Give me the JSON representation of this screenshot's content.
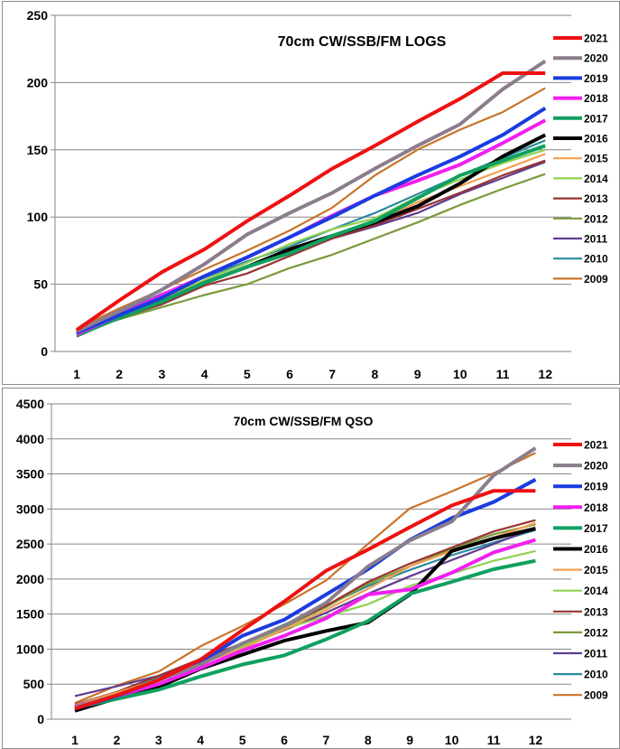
{
  "chart_data": [
    {
      "type": "line",
      "title": "70cm CW/SSB/FM LOGS",
      "xlabel": "",
      "ylabel": "",
      "x": [
        1,
        2,
        3,
        4,
        5,
        6,
        7,
        8,
        9,
        10,
        11,
        12
      ],
      "ylim": [
        0,
        250
      ],
      "yticks": [
        0,
        50,
        100,
        150,
        200,
        250
      ],
      "grid": "horizontal",
      "legend": "right",
      "series": [
        {
          "name": "2021",
          "color": "#ee1111",
          "values": [
            16,
            38,
            59,
            76,
            97,
            116,
            136,
            153,
            171,
            188,
            207,
            207
          ]
        },
        {
          "name": "2020",
          "color": "#8c7c8c",
          "values": [
            15,
            30,
            46,
            65,
            87,
            103,
            118,
            136,
            153,
            169,
            195,
            216
          ]
        },
        {
          "name": "2019",
          "color": "#1a3ce0",
          "values": [
            14,
            27,
            40,
            56,
            70,
            85,
            100,
            116,
            131,
            145,
            161,
            181
          ]
        },
        {
          "name": "2018",
          "color": "#f020f0",
          "values": [
            13,
            27,
            42,
            56,
            70,
            85,
            101,
            116,
            127,
            139,
            155,
            172
          ]
        },
        {
          "name": "2017",
          "color": "#10a060",
          "values": [
            12,
            25,
            37,
            51,
            63,
            73,
            86,
            97,
            114,
            131,
            142,
            153
          ]
        },
        {
          "name": "2016",
          "color": "#000000",
          "values": [
            13,
            25,
            37,
            51,
            63,
            76,
            86,
            96,
            108,
            125,
            145,
            161
          ]
        },
        {
          "name": "2015",
          "color": "#f0a050",
          "values": [
            14,
            27,
            38,
            51,
            62,
            77,
            86,
            96,
            111,
            123,
            135,
            147
          ]
        },
        {
          "name": "2014",
          "color": "#90d050",
          "values": [
            14,
            27,
            39,
            53,
            66,
            80,
            91,
            99,
            115,
            128,
            140,
            150
          ]
        },
        {
          "name": "2013",
          "color": "#993333",
          "values": [
            11,
            25,
            35,
            49,
            58,
            71,
            84,
            94,
            106,
            118,
            131,
            142
          ]
        },
        {
          "name": "2012",
          "color": "#7a9a3a",
          "values": [
            14,
            24,
            33,
            42,
            50,
            62,
            72,
            84,
            96,
            109,
            121,
            132
          ]
        },
        {
          "name": "2011",
          "color": "#603c90",
          "values": [
            15,
            27,
            39,
            51,
            63,
            74,
            84,
            93,
            103,
            117,
            129,
            141
          ]
        },
        {
          "name": "2010",
          "color": "#2a8aa0",
          "values": [
            15,
            29,
            43,
            55,
            67,
            78,
            91,
            103,
            117,
            131,
            144,
            157
          ]
        },
        {
          "name": "2009",
          "color": "#c8742a",
          "values": [
            17,
            32,
            46,
            61,
            75,
            90,
            107,
            131,
            150,
            165,
            178,
            196
          ]
        }
      ]
    },
    {
      "type": "line",
      "title": "70cm CW/SSB/FM QSO",
      "xlabel": "",
      "ylabel": "",
      "x": [
        1,
        2,
        3,
        4,
        5,
        6,
        7,
        8,
        9,
        10,
        11,
        12
      ],
      "ylim": [
        0,
        4500
      ],
      "yticks": [
        0,
        500,
        1000,
        1500,
        2000,
        2500,
        3000,
        3500,
        4000,
        4500
      ],
      "grid": "horizontal",
      "legend": "right",
      "series": [
        {
          "name": "2021",
          "color": "#ee1111",
          "values": [
            150,
            340,
            560,
            850,
            1270,
            1680,
            2120,
            2420,
            2740,
            3050,
            3260,
            3260
          ]
        },
        {
          "name": "2020",
          "color": "#8c7c8c",
          "values": [
            170,
            340,
            560,
            780,
            1080,
            1330,
            1660,
            2180,
            2550,
            2820,
            3480,
            3870
          ]
        },
        {
          "name": "2019",
          "color": "#1a3ce0",
          "values": [
            150,
            330,
            560,
            820,
            1190,
            1420,
            1780,
            2140,
            2560,
            2870,
            3100,
            3420
          ]
        },
        {
          "name": "2018",
          "color": "#f020f0",
          "values": [
            180,
            330,
            500,
            730,
            980,
            1190,
            1440,
            1780,
            1850,
            2090,
            2380,
            2560
          ]
        },
        {
          "name": "2017",
          "color": "#10a060",
          "values": [
            160,
            290,
            420,
            610,
            780,
            910,
            1140,
            1400,
            1790,
            1960,
            2140,
            2260
          ]
        },
        {
          "name": "2016",
          "color": "#000000",
          "values": [
            120,
            300,
            460,
            720,
            920,
            1120,
            1260,
            1380,
            1780,
            2400,
            2580,
            2720
          ]
        },
        {
          "name": "2015",
          "color": "#f0a050",
          "values": [
            200,
            380,
            560,
            790,
            1010,
            1280,
            1560,
            1860,
            2180,
            2400,
            2590,
            2800
          ]
        },
        {
          "name": "2014",
          "color": "#90d050",
          "values": [
            200,
            380,
            570,
            800,
            1040,
            1290,
            1470,
            1640,
            1900,
            2080,
            2260,
            2400
          ]
        },
        {
          "name": "2013",
          "color": "#993333",
          "values": [
            210,
            390,
            620,
            860,
            1080,
            1330,
            1620,
            1960,
            2220,
            2450,
            2680,
            2840
          ]
        },
        {
          "name": "2012",
          "color": "#7a9a3a",
          "values": [
            180,
            360,
            580,
            810,
            1050,
            1310,
            1600,
            1930,
            2180,
            2430,
            2640,
            2780
          ]
        },
        {
          "name": "2011",
          "color": "#603c90",
          "values": [
            330,
            470,
            620,
            800,
            1040,
            1270,
            1520,
            1790,
            2040,
            2270,
            2500,
            2730
          ]
        },
        {
          "name": "2010",
          "color": "#2a8aa0",
          "values": [
            190,
            380,
            590,
            820,
            1090,
            1350,
            1620,
            1900,
            2130,
            2340,
            2520,
            2700
          ]
        },
        {
          "name": "2009",
          "color": "#c8742a",
          "values": [
            230,
            480,
            680,
            1040,
            1330,
            1640,
            1980,
            2500,
            3010,
            3250,
            3510,
            3800
          ]
        }
      ]
    }
  ]
}
